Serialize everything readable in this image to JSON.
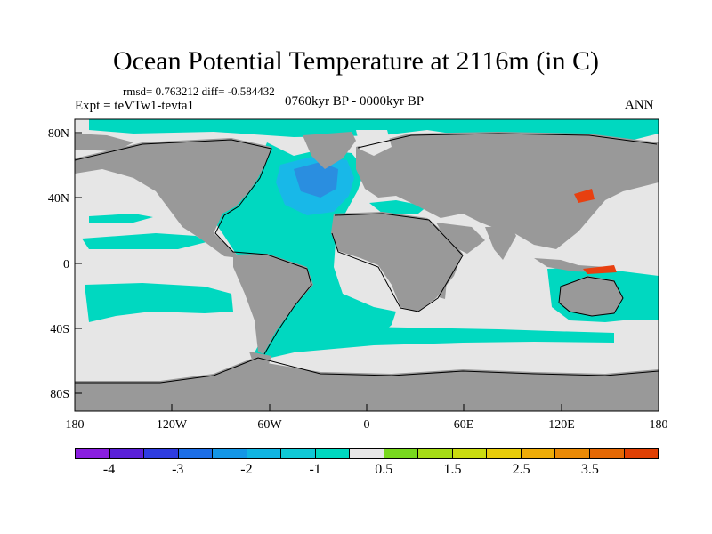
{
  "title": "Ocean Potential Temperature at 2116m (in C)",
  "stats_text": "rmsd= 0.763212 diff= -0.584432",
  "expt_text": "Expt = teVTw1-tevta1",
  "period_text": "0760kyr BP - 0000kyr BP",
  "season_text": "ANN",
  "map": {
    "y_ticks": [
      "80N",
      "40N",
      "0",
      "40S",
      "80S"
    ],
    "x_ticks": [
      "180",
      "120W",
      "60W",
      "0",
      "60E",
      "120E",
      "180"
    ],
    "colors": {
      "land": "#999999",
      "no_change": "#e6e6e6",
      "cool_1": "#00d8c0",
      "cool_2": "#18b8e8",
      "cool_3": "#2a8ee0",
      "warm_4": "#e84010",
      "coast": "#000000"
    }
  },
  "colorbar": {
    "colors": [
      "#8a1ee0",
      "#5a20d8",
      "#2e3ce0",
      "#1c6ee6",
      "#1496e6",
      "#10b4e2",
      "#10c8d6",
      "#00d8c0",
      "#e6e6e6",
      "#78d81e",
      "#a6dc16",
      "#cadc10",
      "#e8cc0a",
      "#eeac08",
      "#ea8a06",
      "#e46804",
      "#e04004"
    ],
    "labels": [
      "-4",
      "-3",
      "-2",
      "-1",
      "0.5",
      "1.5",
      "2.5",
      "3.5"
    ]
  }
}
